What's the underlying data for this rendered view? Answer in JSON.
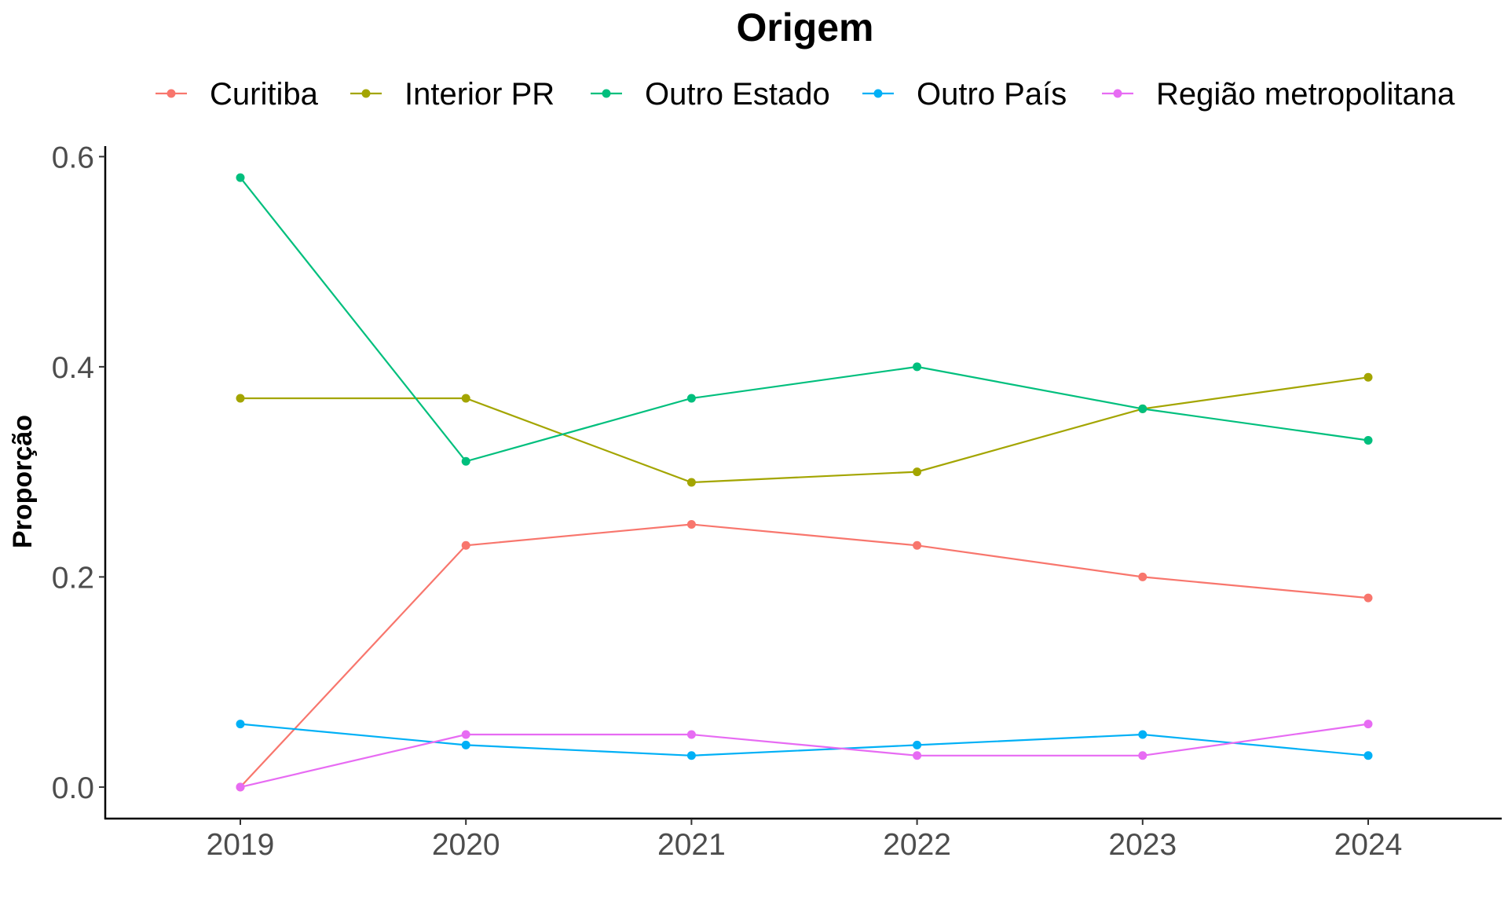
{
  "chart_data": {
    "type": "line",
    "legend_title": "Origem",
    "legend_position": "top",
    "xlabel": "",
    "ylabel": "Proporção",
    "x": [
      2019,
      2020,
      2021,
      2022,
      2023,
      2024
    ],
    "x_tick_labels": [
      "2019",
      "2020",
      "2021",
      "2022",
      "2023",
      "2024"
    ],
    "ylim": [
      -0.03,
      0.61
    ],
    "y_ticks": [
      0.0,
      0.2,
      0.4,
      0.6
    ],
    "y_tick_labels": [
      "0.0",
      "0.2",
      "0.4",
      "0.6"
    ],
    "grid": false,
    "series": [
      {
        "name": "Curitiba",
        "color": "#F8766D",
        "values": [
          0.0,
          0.23,
          0.25,
          0.23,
          0.2,
          0.18
        ]
      },
      {
        "name": "Interior PR",
        "color": "#A3A500",
        "values": [
          0.37,
          0.37,
          0.29,
          0.3,
          0.36,
          0.39
        ]
      },
      {
        "name": "Outro Estado",
        "color": "#00BF7D",
        "values": [
          0.58,
          0.31,
          0.37,
          0.4,
          0.36,
          0.33
        ]
      },
      {
        "name": "Outro País",
        "color": "#00B0F6",
        "values": [
          0.06,
          0.04,
          0.03,
          0.04,
          0.05,
          0.03
        ]
      },
      {
        "name": "Região metropolitana",
        "color": "#E76BF3",
        "values": [
          0.0,
          0.05,
          0.05,
          0.03,
          0.03,
          0.06
        ]
      }
    ]
  }
}
